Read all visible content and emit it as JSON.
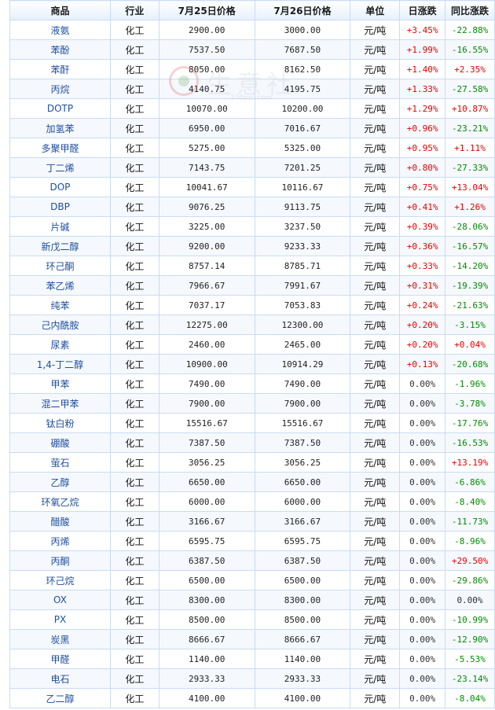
{
  "headers": [
    "商品",
    "行业",
    "7月25日价格",
    "7月26日价格",
    "单位",
    "日涨跌",
    "同比涨跌"
  ],
  "watermark": {
    "text": "生意社",
    "url": "100ppi.com"
  },
  "rows": [
    [
      "液氨",
      "化工",
      "2900.00",
      "3000.00",
      "元/吨",
      "+3.45%",
      "-22.88%"
    ],
    [
      "苯酚",
      "化工",
      "7537.50",
      "7687.50",
      "元/吨",
      "+1.99%",
      "-16.55%"
    ],
    [
      "苯酐",
      "化工",
      "8050.00",
      "8162.50",
      "元/吨",
      "+1.40%",
      "+2.35%"
    ],
    [
      "丙烷",
      "化工",
      "4140.75",
      "4195.75",
      "元/吨",
      "+1.33%",
      "-27.58%"
    ],
    [
      "DOTP",
      "化工",
      "10070.00",
      "10200.00",
      "元/吨",
      "+1.29%",
      "+10.87%"
    ],
    [
      "加氢苯",
      "化工",
      "6950.00",
      "7016.67",
      "元/吨",
      "+0.96%",
      "-23.21%"
    ],
    [
      "多聚甲醛",
      "化工",
      "5275.00",
      "5325.00",
      "元/吨",
      "+0.95%",
      "+1.11%"
    ],
    [
      "丁二烯",
      "化工",
      "7143.75",
      "7201.25",
      "元/吨",
      "+0.80%",
      "-27.33%"
    ],
    [
      "DOP",
      "化工",
      "10041.67",
      "10116.67",
      "元/吨",
      "+0.75%",
      "+13.04%"
    ],
    [
      "DBP",
      "化工",
      "9076.25",
      "9113.75",
      "元/吨",
      "+0.41%",
      "+1.26%"
    ],
    [
      "片碱",
      "化工",
      "3225.00",
      "3237.50",
      "元/吨",
      "+0.39%",
      "-28.06%"
    ],
    [
      "新戊二醇",
      "化工",
      "9200.00",
      "9233.33",
      "元/吨",
      "+0.36%",
      "-16.57%"
    ],
    [
      "环己酮",
      "化工",
      "8757.14",
      "8785.71",
      "元/吨",
      "+0.33%",
      "-14.20%"
    ],
    [
      "苯乙烯",
      "化工",
      "7966.67",
      "7991.67",
      "元/吨",
      "+0.31%",
      "-19.39%"
    ],
    [
      "纯苯",
      "化工",
      "7037.17",
      "7053.83",
      "元/吨",
      "+0.24%",
      "-21.63%"
    ],
    [
      "己内酰胺",
      "化工",
      "12275.00",
      "12300.00",
      "元/吨",
      "+0.20%",
      "-3.15%"
    ],
    [
      "尿素",
      "化工",
      "2460.00",
      "2465.00",
      "元/吨",
      "+0.20%",
      "+0.04%"
    ],
    [
      "1,4-丁二醇",
      "化工",
      "10900.00",
      "10914.29",
      "元/吨",
      "+0.13%",
      "-20.68%"
    ],
    [
      "甲苯",
      "化工",
      "7490.00",
      "7490.00",
      "元/吨",
      "0.00%",
      "-1.96%"
    ],
    [
      "混二甲苯",
      "化工",
      "7900.00",
      "7900.00",
      "元/吨",
      "0.00%",
      "-3.78%"
    ],
    [
      "钛白粉",
      "化工",
      "15516.67",
      "15516.67",
      "元/吨",
      "0.00%",
      "-17.76%"
    ],
    [
      "硼酸",
      "化工",
      "7387.50",
      "7387.50",
      "元/吨",
      "0.00%",
      "-16.53%"
    ],
    [
      "萤石",
      "化工",
      "3056.25",
      "3056.25",
      "元/吨",
      "0.00%",
      "+13.19%"
    ],
    [
      "乙醇",
      "化工",
      "6650.00",
      "6650.00",
      "元/吨",
      "0.00%",
      "-6.86%"
    ],
    [
      "环氧乙烷",
      "化工",
      "6000.00",
      "6000.00",
      "元/吨",
      "0.00%",
      "-8.40%"
    ],
    [
      "醋酸",
      "化工",
      "3166.67",
      "3166.67",
      "元/吨",
      "0.00%",
      "-11.73%"
    ],
    [
      "丙烯",
      "化工",
      "6595.75",
      "6595.75",
      "元/吨",
      "0.00%",
      "-8.96%"
    ],
    [
      "丙酮",
      "化工",
      "6387.50",
      "6387.50",
      "元/吨",
      "0.00%",
      "+29.50%"
    ],
    [
      "环己烷",
      "化工",
      "6500.00",
      "6500.00",
      "元/吨",
      "0.00%",
      "-29.86%"
    ],
    [
      "OX",
      "化工",
      "8300.00",
      "8300.00",
      "元/吨",
      "0.00%",
      "0.00%"
    ],
    [
      "PX",
      "化工",
      "8500.00",
      "8500.00",
      "元/吨",
      "0.00%",
      "-10.99%"
    ],
    [
      "炭黑",
      "化工",
      "8666.67",
      "8666.67",
      "元/吨",
      "0.00%",
      "-12.90%"
    ],
    [
      "甲醛",
      "化工",
      "1140.00",
      "1140.00",
      "元/吨",
      "0.00%",
      "-5.53%"
    ],
    [
      "电石",
      "化工",
      "2933.33",
      "2933.33",
      "元/吨",
      "0.00%",
      "-23.14%"
    ],
    [
      "乙二醇",
      "化工",
      "4100.00",
      "4100.00",
      "元/吨",
      "0.00%",
      "-8.04%"
    ]
  ],
  "colors": {
    "up": "#e60000",
    "down": "#008c00",
    "name": "#1f4fa0",
    "border": "#c9ddf2"
  }
}
